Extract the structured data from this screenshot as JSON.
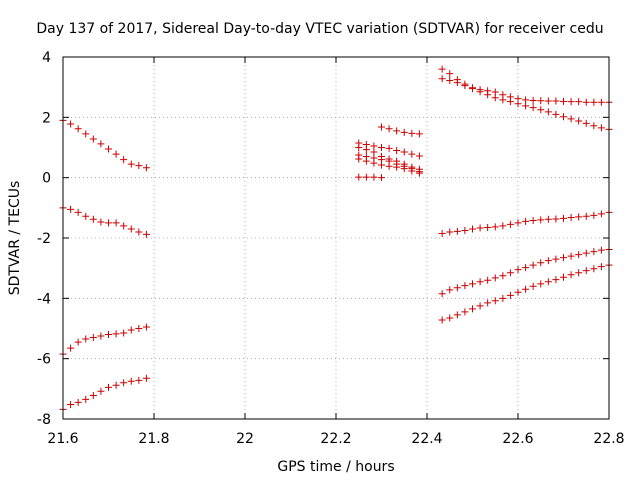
{
  "chart_data": {
    "type": "scatter",
    "title": "Day 137 of 2017, Sidereal Day-to-day VTEC variation (SDTVAR) for receiver cedu",
    "xlabel": "GPS time / hours",
    "ylabel": "SDTVAR / TECUs",
    "xlim": [
      21.6,
      22.8
    ],
    "ylim": [
      -8,
      4
    ],
    "xticks": [
      21.6,
      21.8,
      22.0,
      22.2,
      22.4,
      22.6,
      22.8
    ],
    "xtick_labels": [
      "21.6",
      "21.8",
      "22",
      "22.2",
      "22.4",
      "22.6",
      "22.8"
    ],
    "yticks": [
      -8,
      -6,
      -4,
      -2,
      0,
      2,
      4
    ],
    "ytick_labels": [
      "-8",
      "-6",
      "-4",
      "-2",
      "0",
      "2",
      "4"
    ],
    "grid": true,
    "marker": "+",
    "color": "#cc0000",
    "series": [
      {
        "name": "s1",
        "x": [
          21.6,
          21.6167,
          21.6333,
          21.65,
          21.6667,
          21.6833,
          21.7,
          21.7167,
          21.7333,
          21.75,
          21.7667,
          21.7833
        ],
        "y": [
          1.9,
          1.78,
          1.62,
          1.45,
          1.28,
          1.12,
          0.95,
          0.78,
          0.6,
          0.45,
          0.4,
          0.33
        ]
      },
      {
        "name": "s2",
        "x": [
          21.6,
          21.6167,
          21.6333,
          21.65,
          21.6667,
          21.6833,
          21.7,
          21.7167,
          21.7333,
          21.75,
          21.7667,
          21.7833
        ],
        "y": [
          -1.0,
          -1.05,
          -1.15,
          -1.28,
          -1.38,
          -1.47,
          -1.5,
          -1.5,
          -1.6,
          -1.7,
          -1.8,
          -1.88
        ]
      },
      {
        "name": "s3",
        "x": [
          21.6,
          21.6167,
          21.6333,
          21.65,
          21.6667,
          21.6833,
          21.7,
          21.7167,
          21.7333,
          21.75,
          21.7667,
          21.7833
        ],
        "y": [
          -5.85,
          -5.65,
          -5.45,
          -5.35,
          -5.3,
          -5.25,
          -5.2,
          -5.18,
          -5.15,
          -5.05,
          -5.0,
          -4.95
        ]
      },
      {
        "name": "s4",
        "x": [
          21.6,
          21.6167,
          21.6333,
          21.65,
          21.6667,
          21.6833,
          21.7,
          21.7167,
          21.7333,
          21.75,
          21.7667,
          21.7833
        ],
        "y": [
          -7.68,
          -7.52,
          -7.45,
          -7.35,
          -7.22,
          -7.08,
          -6.95,
          -6.88,
          -6.8,
          -6.75,
          -6.72,
          -6.65
        ]
      },
      {
        "name": "s5",
        "x": [
          22.25,
          22.2667,
          22.2833,
          22.3,
          22.3167,
          22.3333,
          22.35,
          22.3667,
          22.3833
        ],
        "y": [
          1.15,
          1.1,
          1.05,
          1.0,
          0.97,
          0.9,
          0.85,
          0.78,
          0.72
        ]
      },
      {
        "name": "s6",
        "x": [
          22.25,
          22.2667,
          22.2833,
          22.3,
          22.3167,
          22.3333,
          22.35,
          22.3667,
          22.3833
        ],
        "y": [
          1.0,
          0.93,
          0.85,
          0.7,
          0.62,
          0.55,
          0.45,
          0.35,
          0.28
        ]
      },
      {
        "name": "s7",
        "x": [
          22.25,
          22.2667,
          22.2833,
          22.3,
          22.3167,
          22.3333,
          22.35,
          22.3667,
          22.3833
        ],
        "y": [
          0.75,
          0.7,
          0.65,
          0.6,
          0.55,
          0.45,
          0.38,
          0.3,
          0.2
        ]
      },
      {
        "name": "s8",
        "x": [
          22.25,
          22.2667,
          22.2833,
          22.3,
          22.3167,
          22.3333,
          22.35,
          22.3667,
          22.3833
        ],
        "y": [
          0.62,
          0.55,
          0.48,
          0.42,
          0.38,
          0.35,
          0.3,
          0.22,
          0.15
        ]
      },
      {
        "name": "s9",
        "x": [
          22.25,
          22.2667,
          22.2833,
          22.3
        ],
        "y": [
          0.02,
          0.02,
          0.02,
          0.0
        ]
      },
      {
        "name": "s10",
        "x": [
          22.3,
          22.3167,
          22.3333,
          22.35,
          22.3667,
          22.3833
        ],
        "y": [
          1.68,
          1.62,
          1.55,
          1.5,
          1.47,
          1.45
        ]
      },
      {
        "name": "s11",
        "x": [
          22.4333,
          22.45,
          22.4667,
          22.4833,
          22.5,
          22.5167,
          22.5333,
          22.55,
          22.5667,
          22.5833,
          22.6,
          22.6167,
          22.6333,
          22.65,
          22.6667,
          22.6833,
          22.7,
          22.7167,
          22.7333,
          22.75,
          22.7667,
          22.7833,
          22.8
        ],
        "y": [
          3.6,
          3.45,
          3.25,
          3.1,
          2.95,
          2.85,
          2.75,
          2.65,
          2.58,
          2.52,
          2.45,
          2.38,
          2.32,
          2.25,
          2.18,
          2.1,
          2.02,
          1.95,
          1.88,
          1.8,
          1.72,
          1.65,
          1.6
        ]
      },
      {
        "name": "s12",
        "x": [
          22.4333,
          22.45,
          22.4667,
          22.4833,
          22.5,
          22.5167,
          22.5333,
          22.55,
          22.5667,
          22.5833,
          22.6,
          22.6167,
          22.6333,
          22.65,
          22.6667,
          22.6833,
          22.7,
          22.7167,
          22.7333,
          22.75,
          22.7667,
          22.7833,
          22.8
        ],
        "y": [
          3.28,
          3.22,
          3.15,
          3.05,
          2.98,
          2.92,
          2.88,
          2.84,
          2.75,
          2.68,
          2.62,
          2.58,
          2.56,
          2.55,
          2.54,
          2.54,
          2.53,
          2.52,
          2.52,
          2.5,
          2.5,
          2.5,
          2.5
        ]
      },
      {
        "name": "s13",
        "x": [
          22.4333,
          22.45,
          22.4667,
          22.4833,
          22.5,
          22.5167,
          22.5333,
          22.55,
          22.5667,
          22.5833,
          22.6,
          22.6167,
          22.6333,
          22.65,
          22.6667,
          22.6833,
          22.7,
          22.7167,
          22.7333,
          22.75,
          22.7667,
          22.7833,
          22.8
        ],
        "y": [
          -1.85,
          -1.8,
          -1.78,
          -1.75,
          -1.7,
          -1.67,
          -1.65,
          -1.63,
          -1.6,
          -1.55,
          -1.5,
          -1.45,
          -1.42,
          -1.4,
          -1.38,
          -1.37,
          -1.35,
          -1.32,
          -1.3,
          -1.28,
          -1.25,
          -1.2,
          -1.15
        ]
      },
      {
        "name": "s14",
        "x": [
          22.4333,
          22.45,
          22.4667,
          22.4833,
          22.5,
          22.5167,
          22.5333,
          22.55,
          22.5667,
          22.5833,
          22.6,
          22.6167,
          22.6333,
          22.65,
          22.6667,
          22.6833,
          22.7,
          22.7167,
          22.7333,
          22.75,
          22.7667,
          22.7833,
          22.8
        ],
        "y": [
          -3.85,
          -3.72,
          -3.65,
          -3.58,
          -3.52,
          -3.45,
          -3.4,
          -3.32,
          -3.25,
          -3.15,
          -3.05,
          -2.98,
          -2.9,
          -2.82,
          -2.75,
          -2.7,
          -2.65,
          -2.6,
          -2.55,
          -2.5,
          -2.45,
          -2.4,
          -2.38
        ]
      },
      {
        "name": "s15",
        "x": [
          22.4333,
          22.45,
          22.4667,
          22.4833,
          22.5,
          22.5167,
          22.5333,
          22.55,
          22.5667,
          22.5833,
          22.6,
          22.6167,
          22.6333,
          22.65,
          22.6667,
          22.6833,
          22.7,
          22.7167,
          22.7333,
          22.75,
          22.7667,
          22.7833,
          22.8
        ],
        "y": [
          -4.72,
          -4.65,
          -4.55,
          -4.45,
          -4.35,
          -4.25,
          -4.15,
          -4.08,
          -4.0,
          -3.9,
          -3.8,
          -3.7,
          -3.6,
          -3.52,
          -3.45,
          -3.38,
          -3.3,
          -3.22,
          -3.15,
          -3.08,
          -3.02,
          -2.95,
          -2.9
        ]
      }
    ]
  }
}
